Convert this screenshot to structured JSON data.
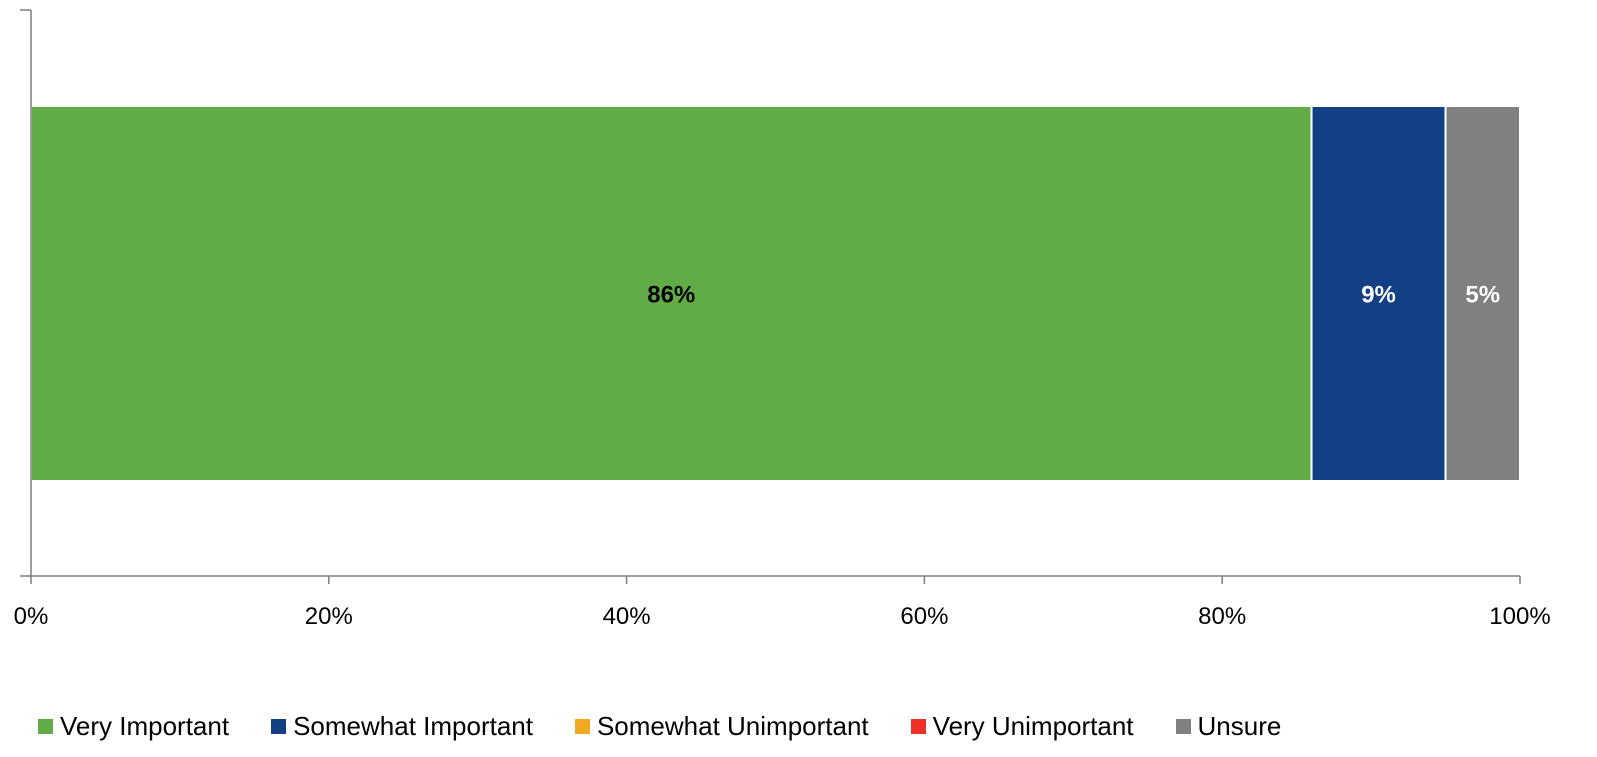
{
  "chart_data": {
    "type": "bar",
    "orientation": "horizontal",
    "stacked": true,
    "percent_stacked": true,
    "x_ticks": [
      "0%",
      "20%",
      "40%",
      "60%",
      "80%",
      "100%"
    ],
    "xlim": [
      0,
      100
    ],
    "grid": false,
    "legend_position": "bottom",
    "series": [
      {
        "name": "Very Important",
        "value": 86,
        "label": "86%",
        "color": "#62AC47",
        "label_color": "#000000"
      },
      {
        "name": "Somewhat Important",
        "value": 9,
        "label": "9%",
        "color": "#133F84",
        "label_color": "#FFFFFF"
      },
      {
        "name": "Somewhat Unimportant",
        "value": 0,
        "label": "",
        "color": "#F1A924",
        "label_color": "#000000"
      },
      {
        "name": "Very Unimportant",
        "value": 0,
        "label": "",
        "color": "#EE3124",
        "label_color": "#000000"
      },
      {
        "name": "Unsure",
        "value": 5,
        "label": "5%",
        "color": "#808080",
        "label_color": "#FFFFFF"
      }
    ]
  }
}
